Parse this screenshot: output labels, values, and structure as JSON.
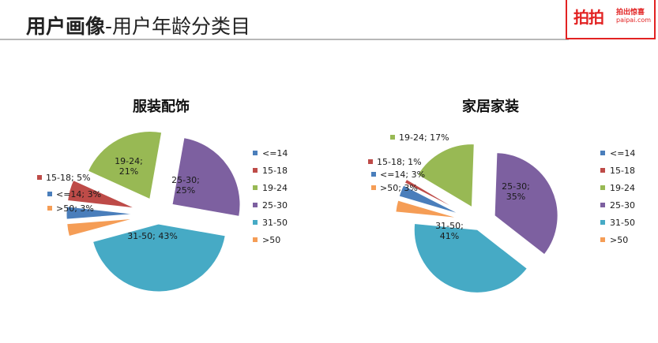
{
  "header": {
    "title_bold": "用户画像",
    "title_rest": "-用户年龄分类目",
    "logo_main": "拍拍",
    "logo_sub1": "拍出惊喜",
    "logo_sub2": "paipai.com"
  },
  "colors": {
    "<=14": "#4a7ebb",
    "15-18": "#be4b48",
    "19-24": "#98b954",
    "25-30": "#7d60a0",
    "31-50": "#46aac5",
    ">50": "#f59d56"
  },
  "legend": [
    "<=14",
    "15-18",
    "19-24",
    "25-30",
    "31-50",
    ">50"
  ],
  "chart_data": [
    {
      "type": "pie",
      "title": "服装配饰",
      "slices": [
        {
          "name": "25-30",
          "value": 25,
          "label": "25-30;\n25%"
        },
        {
          "name": "31-50",
          "value": 43,
          "label": "31-50; 43%"
        },
        {
          "name": ">50",
          "value": 3,
          "label": ">50; 3%"
        },
        {
          "name": "<=14",
          "value": 3,
          "label": "<=14; 3%"
        },
        {
          "name": "15-18",
          "value": 5,
          "label": "15-18; 5%"
        },
        {
          "name": "19-24",
          "value": 21,
          "label": "19-24;\n21%"
        }
      ],
      "legend": [
        "<=14",
        "15-18",
        "19-24",
        "25-30",
        "31-50",
        ">50"
      ]
    },
    {
      "type": "pie",
      "title": "家居家装",
      "slices": [
        {
          "name": "25-30",
          "value": 35,
          "label": "25-30;\n35%"
        },
        {
          "name": "31-50",
          "value": 41,
          "label": "31-50;\n41%"
        },
        {
          "name": ">50",
          "value": 3,
          "label": ">50; 3%"
        },
        {
          "name": "<=14",
          "value": 3,
          "label": "<=14; 3%"
        },
        {
          "name": "15-18",
          "value": 1,
          "label": "15-18; 1%"
        },
        {
          "name": "19-24",
          "value": 17,
          "label": "19-24; 17%"
        }
      ],
      "legend": [
        "<=14",
        "15-18",
        "19-24",
        "25-30",
        "31-50",
        ">50"
      ]
    }
  ]
}
